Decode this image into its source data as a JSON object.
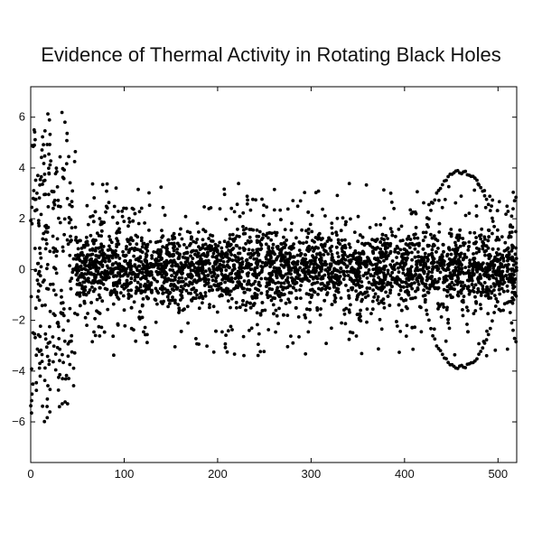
{
  "chart_data": {
    "type": "scatter",
    "title": "Evidence of Thermal Activity in Rotating Black Holes",
    "xlabel": "",
    "ylabel": "",
    "xlim": [
      0,
      520
    ],
    "ylim": [
      -7.6,
      7.2
    ],
    "xticks": [
      0,
      100,
      200,
      300,
      400,
      500
    ],
    "yticks": [
      -6,
      -4,
      -2,
      0,
      2,
      4,
      6
    ],
    "grid": false,
    "marker_color": "#000000",
    "series": [
      {
        "regions": [
          {
            "x_range": [
              0,
              48
            ],
            "spread": 6.4,
            "n": 260,
            "shape": "wide-oscillating"
          },
          {
            "x_range": [
              48,
              520
            ],
            "spread": 2.1,
            "n": 3600,
            "shape": "dense-band"
          }
        ],
        "outlier_arcs": [
          {
            "x_center": 460,
            "x_halfwidth": 40,
            "y_peak": 3.85
          },
          {
            "x_center": 540,
            "x_halfwidth": 30,
            "y_peak": 3.95
          }
        ]
      }
    ]
  }
}
